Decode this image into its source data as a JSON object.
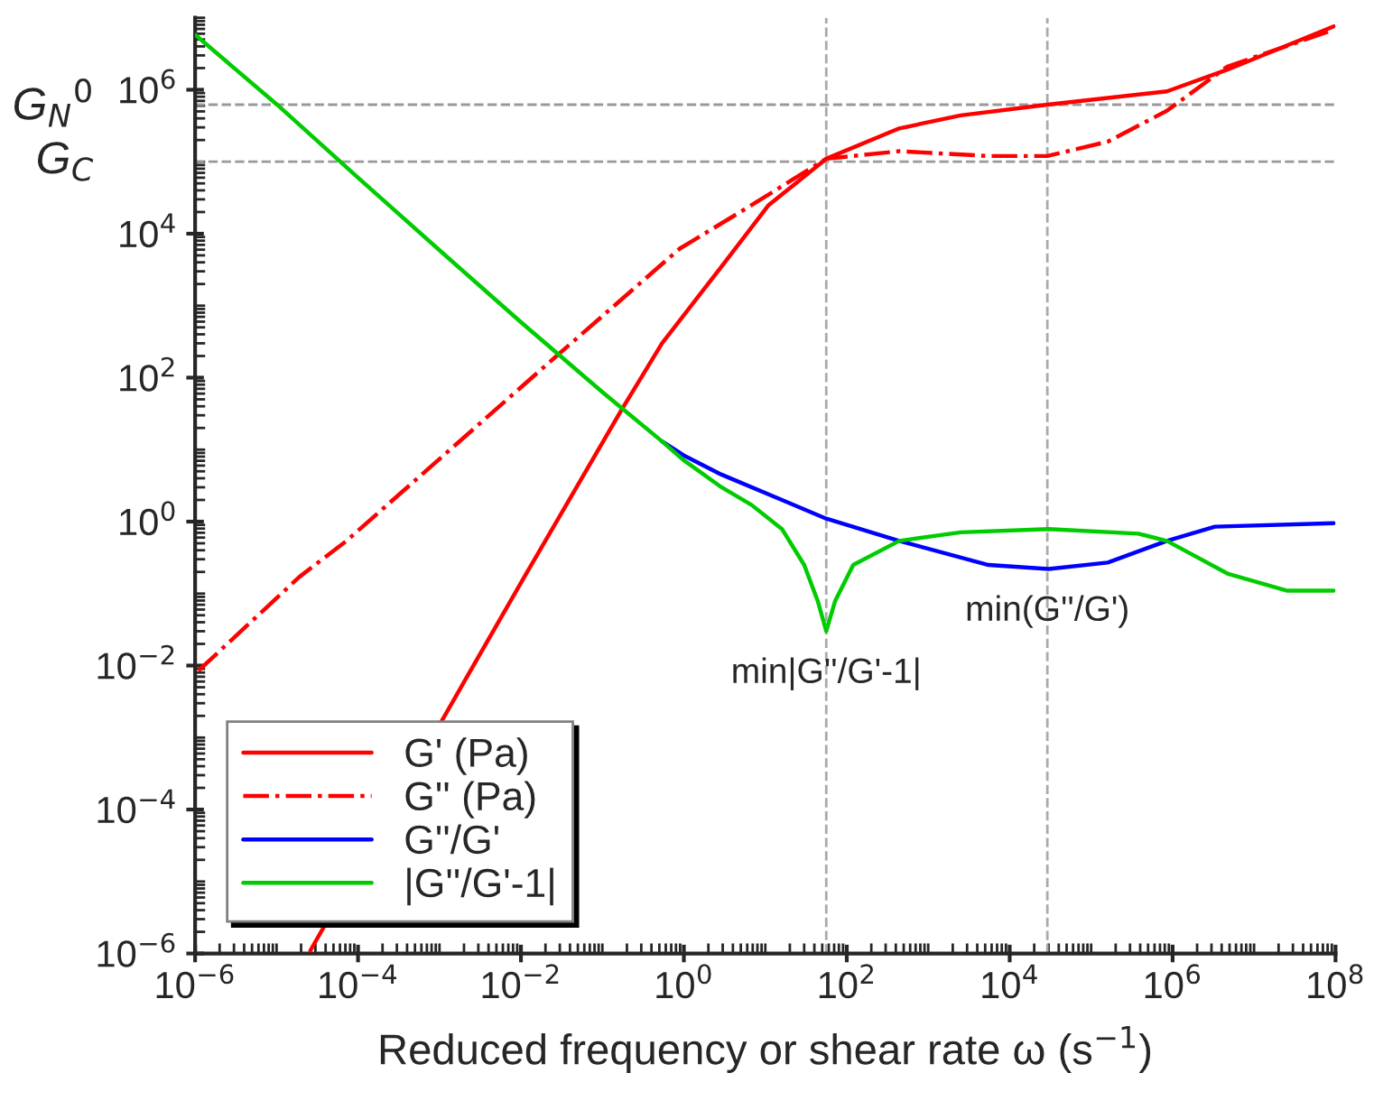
{
  "chart_data": {
    "type": "line",
    "xlabel": "Reduced frequency or shear rate ω (s$^{−1}$)",
    "log": "xy",
    "grid": false,
    "legend": "bottom left",
    "xlim": [
      1e-06,
      100000000.0
    ],
    "ylim": [
      1e-06,
      10000000.0
    ],
    "xticks": [
      {
        "value": 1e-06,
        "label": "10$^{−6}$"
      },
      {
        "value": 0.0001,
        "label": "10$^{−4}$"
      },
      {
        "value": 0.01,
        "label": "10$^{−2}$"
      },
      {
        "value": 1,
        "label": "10$^{0}$"
      },
      {
        "value": 100.0,
        "label": "10$^{2}$"
      },
      {
        "value": 10000.0,
        "label": "10$^{4}$"
      },
      {
        "value": 1000000.0,
        "label": "10$^{6}$"
      },
      {
        "value": 100000000.0,
        "label": "10$^{8}$"
      }
    ],
    "yticks": [
      {
        "value": 1e-06,
        "label": "10$^{−6}$"
      },
      {
        "value": 0.0001,
        "label": "10$^{−4}$"
      },
      {
        "value": 0.01,
        "label": "10$^{−2}$"
      },
      {
        "value": 1,
        "label": "10$^{0}$"
      },
      {
        "value": 100.0,
        "label": "10$^{2}$"
      },
      {
        "value": 10000.0,
        "label": "10$^{4}$"
      },
      {
        "value": 1000000.0,
        "label": "10$^{6}$"
      }
    ],
    "series": [
      {
        "name": "G' (Pa)",
        "color": "#ff0000",
        "line_style": "solid",
        "x": [
          2.6e-05,
          0.0021,
          0.011,
          0.17,
          0.54,
          2.9,
          11,
          56,
          440,
          2500,
          29000.0,
          850000.0,
          4700000.0,
          95000000.0
        ],
        "values": [
          1.1e-06,
          0.0065,
          0.17,
          35,
          300,
          3500.0,
          25000.0,
          110000.0,
          290000.0,
          440000.0,
          620000.0,
          950000.0,
          1900000.0,
          7600000.0
        ]
      },
      {
        "name": "G'' (Pa)",
        "color": "#ff0000",
        "line_style": "dashdot",
        "x": [
          1.1e-06,
          1.9e-05,
          7.2e-05,
          0.026,
          0.89,
          6.8,
          56,
          440,
          5500.0,
          29000.0,
          160000.0,
          850000.0,
          4700000.0,
          95000000.0
        ],
        "values": [
          0.0085,
          0.17,
          0.54,
          190,
          6200.0,
          25000.0,
          110000.0,
          140000.0,
          120000.0,
          120000.0,
          190000.0,
          510000.0,
          2100000.0,
          6800000.0
        ]
      },
      {
        "name": "G''/G'",
        "color": "#0000ff",
        "line_style": "solid",
        "x": [
          0.54,
          1,
          2.9,
          16,
          56,
          440,
          5500.0,
          30000.0,
          160000.0,
          850000.0,
          3300000.0,
          95000000.0
        ],
        "values": [
          13,
          8.3,
          4.5,
          2.0,
          1.1,
          0.54,
          0.25,
          0.22,
          0.27,
          0.54,
          0.85,
          0.95
        ]
      },
      {
        "name": "|G''/G'-1|",
        "color": "#00cc00",
        "line_style": "solid",
        "x": [
          1e-06,
          1e-05,
          0.0001,
          0.001,
          0.01,
          0.1,
          0.54,
          1,
          2.9,
          6.8,
          16,
          30,
          44,
          56,
          72,
          120,
          440,
          2500,
          30000.0,
          380000.0,
          850000.0,
          4700000.0,
          25000000.0,
          95000000.0
        ],
        "values": [
          5800000.0,
          630000.0,
          60000.0,
          5900.0,
          590,
          63,
          13,
          7.1,
          3.0,
          1.7,
          0.79,
          0.25,
          0.079,
          0.03,
          0.079,
          0.25,
          0.54,
          0.71,
          0.79,
          0.68,
          0.54,
          0.19,
          0.11,
          0.11
        ]
      }
    ],
    "ref_lines": [
      {
        "axis": "y",
        "value": 620000.0,
        "label": "G$_{N}$$^{0}$",
        "color": "#999999",
        "line_style": "dashed"
      },
      {
        "axis": "y",
        "value": 100000.0,
        "label": "G$_{C}$",
        "color": "#999999",
        "line_style": "dashed"
      },
      {
        "axis": "x",
        "value": 56,
        "color": "#aaaaaa",
        "line_style": "dashed"
      },
      {
        "axis": "x",
        "value": 29000.0,
        "color": "#aaaaaa",
        "line_style": "dashed"
      }
    ],
    "annotations": [
      {
        "text": "min|G''/G'-1|",
        "x": 56,
        "y": 0.03
      },
      {
        "text": "min(G''/G')",
        "x": 29000.0,
        "y": 0.22
      }
    ]
  }
}
